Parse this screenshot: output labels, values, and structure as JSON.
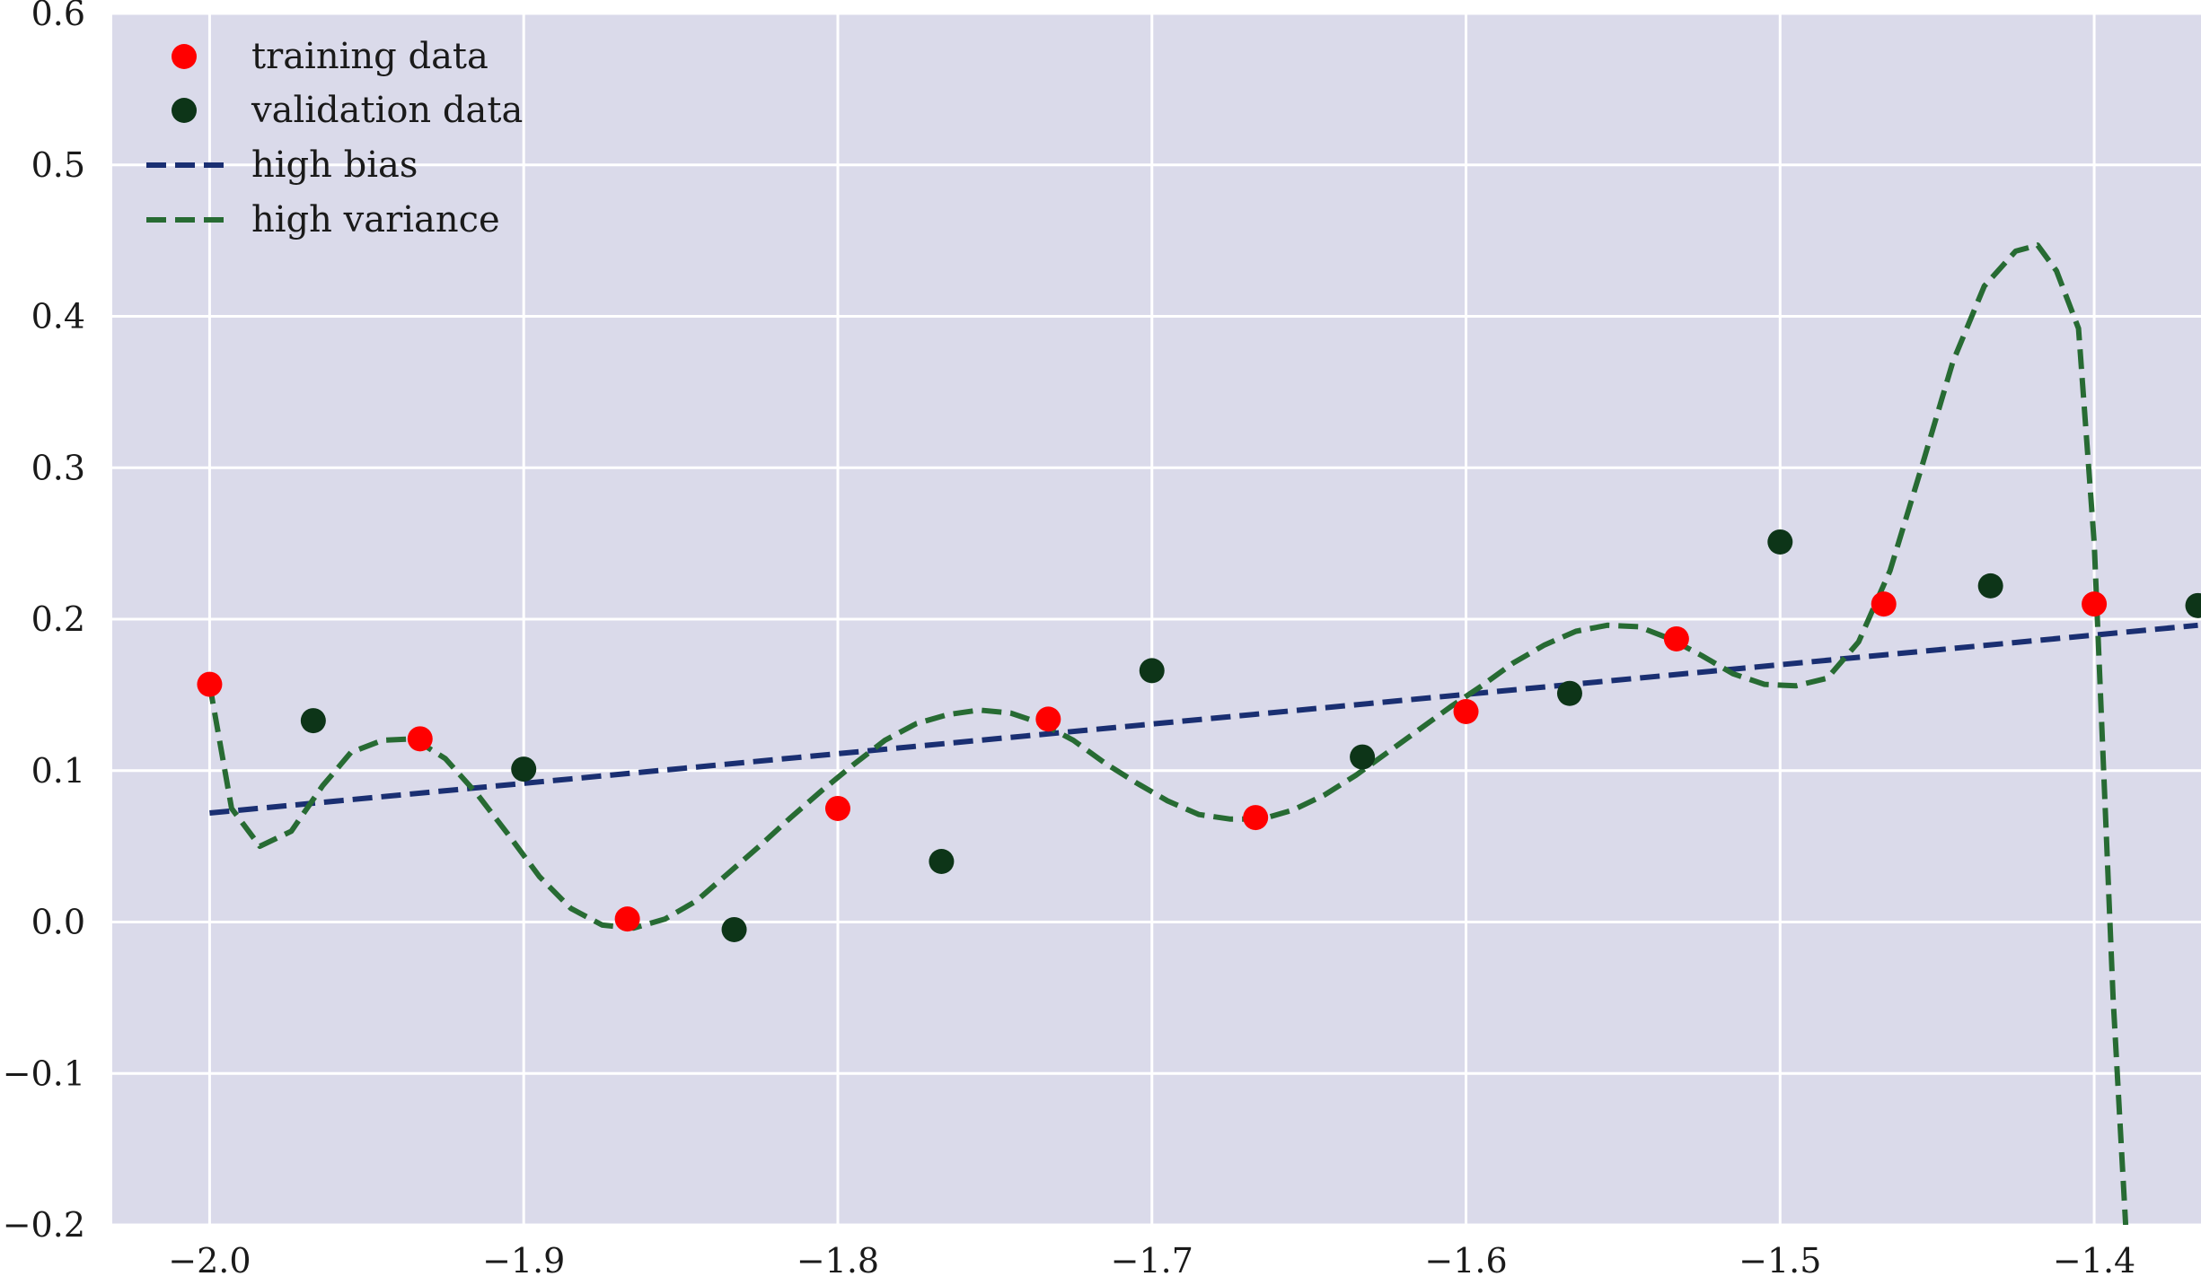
{
  "chart_data": {
    "type": "scatter",
    "title": "",
    "xlabel": "",
    "ylabel": "",
    "xlim": [
      -2.031,
      -1.366
    ],
    "ylim": [
      -0.2,
      0.6
    ],
    "grid": true,
    "background": "#dadaea",
    "grid_color": "#ffffff",
    "legend_position": "top-left",
    "x_ticks": [
      -2.0,
      -1.9,
      -1.8,
      -1.7,
      -1.6,
      -1.5,
      -1.4
    ],
    "x_tick_labels": [
      "−2.0",
      "−1.9",
      "−1.8",
      "−1.7",
      "−1.6",
      "−1.5",
      "−1.4"
    ],
    "y_ticks": [
      -0.2,
      -0.1,
      0.0,
      0.1,
      0.2,
      0.3,
      0.4,
      0.5,
      0.6
    ],
    "y_tick_labels": [
      "−0.2",
      "−0.1",
      "0.0",
      "0.1",
      "0.2",
      "0.3",
      "0.4",
      "0.5",
      "0.6"
    ],
    "series": [
      {
        "name": "training data",
        "kind": "scatter",
        "color": "#ff0000",
        "x": [
          -2.0,
          -1.933,
          -1.867,
          -1.8,
          -1.733,
          -1.667,
          -1.6,
          -1.533,
          -1.467,
          -1.4
        ],
        "y": [
          0.157,
          0.121,
          0.002,
          0.075,
          0.134,
          0.069,
          0.139,
          0.187,
          0.21,
          0.21
        ]
      },
      {
        "name": "validation data",
        "kind": "scatter",
        "color": "#0d3518",
        "x": [
          -1.967,
          -1.9,
          -1.833,
          -1.767,
          -1.7,
          -1.633,
          -1.567,
          -1.5,
          -1.433,
          -1.367
        ],
        "y": [
          0.133,
          0.101,
          -0.005,
          0.04,
          0.166,
          0.109,
          0.151,
          0.251,
          0.222,
          0.209
        ]
      },
      {
        "name": "high bias",
        "kind": "line",
        "dash": true,
        "color": "#1a2f72",
        "x": [
          -2.0,
          -1.367
        ],
        "y": [
          0.072,
          0.196
        ]
      },
      {
        "name": "high variance",
        "kind": "line",
        "dash": true,
        "color": "#276b33",
        "x": [
          -2.0,
          -1.993,
          -1.984,
          -1.974,
          -1.964,
          -1.955,
          -1.945,
          -1.935,
          -1.925,
          -1.915,
          -1.905,
          -1.895,
          -1.885,
          -1.875,
          -1.865,
          -1.855,
          -1.845,
          -1.835,
          -1.825,
          -1.815,
          -1.805,
          -1.795,
          -1.785,
          -1.775,
          -1.765,
          -1.755,
          -1.745,
          -1.735,
          -1.725,
          -1.715,
          -1.705,
          -1.695,
          -1.685,
          -1.675,
          -1.665,
          -1.655,
          -1.645,
          -1.635,
          -1.625,
          -1.615,
          -1.605,
          -1.595,
          -1.585,
          -1.575,
          -1.565,
          -1.555,
          -1.545,
          -1.535,
          -1.525,
          -1.515,
          -1.505,
          -1.495,
          -1.485,
          -1.475,
          -1.465,
          -1.455,
          -1.445,
          -1.435,
          -1.425,
          -1.418,
          -1.412,
          -1.405,
          -1.4,
          -1.397,
          -1.394,
          -1.39
        ],
        "y": [
          0.157,
          0.075,
          0.05,
          0.06,
          0.09,
          0.112,
          0.12,
          0.121,
          0.108,
          0.085,
          0.058,
          0.03,
          0.009,
          -0.002,
          -0.004,
          0.002,
          0.014,
          0.032,
          0.05,
          0.069,
          0.087,
          0.104,
          0.12,
          0.131,
          0.137,
          0.14,
          0.138,
          0.131,
          0.12,
          0.105,
          0.092,
          0.08,
          0.071,
          0.068,
          0.068,
          0.074,
          0.084,
          0.097,
          0.112,
          0.127,
          0.142,
          0.156,
          0.171,
          0.183,
          0.192,
          0.196,
          0.195,
          0.187,
          0.176,
          0.164,
          0.157,
          0.156,
          0.161,
          0.185,
          0.232,
          0.3,
          0.37,
          0.42,
          0.443,
          0.447,
          0.43,
          0.392,
          0.25,
          0.1,
          -0.05,
          -0.2
        ]
      }
    ]
  }
}
